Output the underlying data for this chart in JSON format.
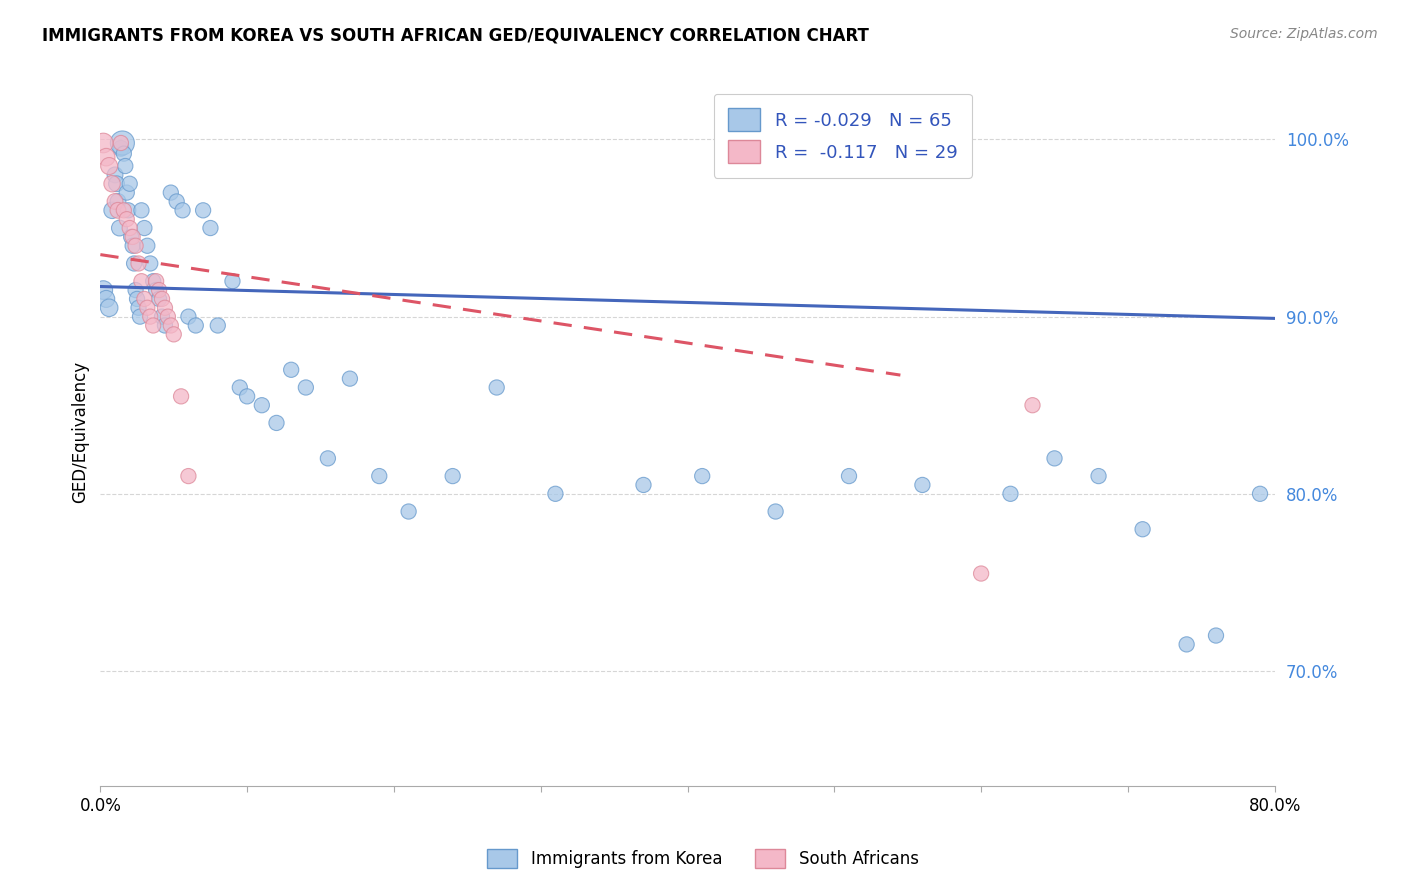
{
  "title": "IMMIGRANTS FROM KOREA VS SOUTH AFRICAN GED/EQUIVALENCY CORRELATION CHART",
  "source": "Source: ZipAtlas.com",
  "ylabel": "GED/Equivalency",
  "legend_label1": "Immigrants from Korea",
  "legend_label2": "South Africans",
  "R1": "-0.029",
  "N1": "65",
  "R2": "-0.117",
  "N2": "29",
  "color_blue": "#a8c8e8",
  "color_pink": "#f4b8c8",
  "color_blue_edge": "#6699cc",
  "color_pink_edge": "#dd8899",
  "color_line_blue": "#4466bb",
  "color_line_pink": "#dd5566",
  "xlim": [
    0.0,
    0.8
  ],
  "ylim": [
    0.635,
    1.035
  ],
  "yticks": [
    0.7,
    0.8,
    0.9,
    1.0
  ],
  "xticks": [
    0.0,
    0.1,
    0.2,
    0.3,
    0.4,
    0.5,
    0.6,
    0.7,
    0.8
  ],
  "blue_line_x": [
    0.0,
    0.8
  ],
  "blue_line_y": [
    0.917,
    0.899
  ],
  "pink_line_x": [
    0.0,
    0.545
  ],
  "pink_line_y": [
    0.935,
    0.867
  ],
  "blue_x": [
    0.002,
    0.004,
    0.006,
    0.008,
    0.01,
    0.011,
    0.012,
    0.013,
    0.014,
    0.015,
    0.016,
    0.017,
    0.018,
    0.019,
    0.02,
    0.021,
    0.022,
    0.023,
    0.024,
    0.025,
    0.026,
    0.027,
    0.028,
    0.03,
    0.032,
    0.034,
    0.036,
    0.038,
    0.04,
    0.042,
    0.044,
    0.048,
    0.052,
    0.056,
    0.06,
    0.065,
    0.07,
    0.075,
    0.08,
    0.09,
    0.095,
    0.1,
    0.11,
    0.12,
    0.13,
    0.14,
    0.155,
    0.17,
    0.19,
    0.21,
    0.24,
    0.27,
    0.31,
    0.37,
    0.41,
    0.46,
    0.51,
    0.56,
    0.62,
    0.65,
    0.68,
    0.71,
    0.74,
    0.76,
    0.79
  ],
  "blue_y": [
    0.915,
    0.91,
    0.905,
    0.96,
    0.98,
    0.975,
    0.965,
    0.95,
    0.995,
    0.998,
    0.992,
    0.985,
    0.97,
    0.96,
    0.975,
    0.945,
    0.94,
    0.93,
    0.915,
    0.91,
    0.905,
    0.9,
    0.96,
    0.95,
    0.94,
    0.93,
    0.92,
    0.915,
    0.91,
    0.9,
    0.895,
    0.97,
    0.965,
    0.96,
    0.9,
    0.895,
    0.96,
    0.95,
    0.895,
    0.92,
    0.86,
    0.855,
    0.85,
    0.84,
    0.87,
    0.86,
    0.82,
    0.865,
    0.81,
    0.79,
    0.81,
    0.86,
    0.8,
    0.805,
    0.81,
    0.79,
    0.81,
    0.805,
    0.8,
    0.82,
    0.81,
    0.78,
    0.715,
    0.72,
    0.8
  ],
  "blue_sizes": [
    180,
    150,
    160,
    140,
    130,
    130,
    130,
    130,
    130,
    300,
    120,
    120,
    120,
    120,
    120,
    120,
    120,
    120,
    120,
    120,
    120,
    120,
    120,
    120,
    120,
    120,
    120,
    120,
    120,
    120,
    120,
    120,
    120,
    120,
    120,
    120,
    120,
    120,
    120,
    120,
    120,
    120,
    120,
    120,
    120,
    120,
    120,
    120,
    120,
    120,
    120,
    120,
    120,
    120,
    120,
    120,
    120,
    120,
    120,
    120,
    120,
    120,
    120,
    120,
    120
  ],
  "pink_x": [
    0.002,
    0.004,
    0.006,
    0.008,
    0.01,
    0.012,
    0.014,
    0.016,
    0.018,
    0.02,
    0.022,
    0.024,
    0.026,
    0.028,
    0.03,
    0.032,
    0.034,
    0.036,
    0.038,
    0.04,
    0.042,
    0.044,
    0.046,
    0.048,
    0.05,
    0.055,
    0.06,
    0.6,
    0.635
  ],
  "pink_y": [
    0.998,
    0.99,
    0.985,
    0.975,
    0.965,
    0.96,
    0.998,
    0.96,
    0.955,
    0.95,
    0.945,
    0.94,
    0.93,
    0.92,
    0.91,
    0.905,
    0.9,
    0.895,
    0.92,
    0.915,
    0.91,
    0.905,
    0.9,
    0.895,
    0.89,
    0.855,
    0.81,
    0.755,
    0.85
  ],
  "pink_sizes": [
    200,
    160,
    150,
    140,
    130,
    130,
    120,
    120,
    120,
    120,
    120,
    120,
    120,
    120,
    120,
    120,
    120,
    120,
    120,
    120,
    120,
    120,
    120,
    120,
    120,
    120,
    120,
    120,
    120
  ]
}
